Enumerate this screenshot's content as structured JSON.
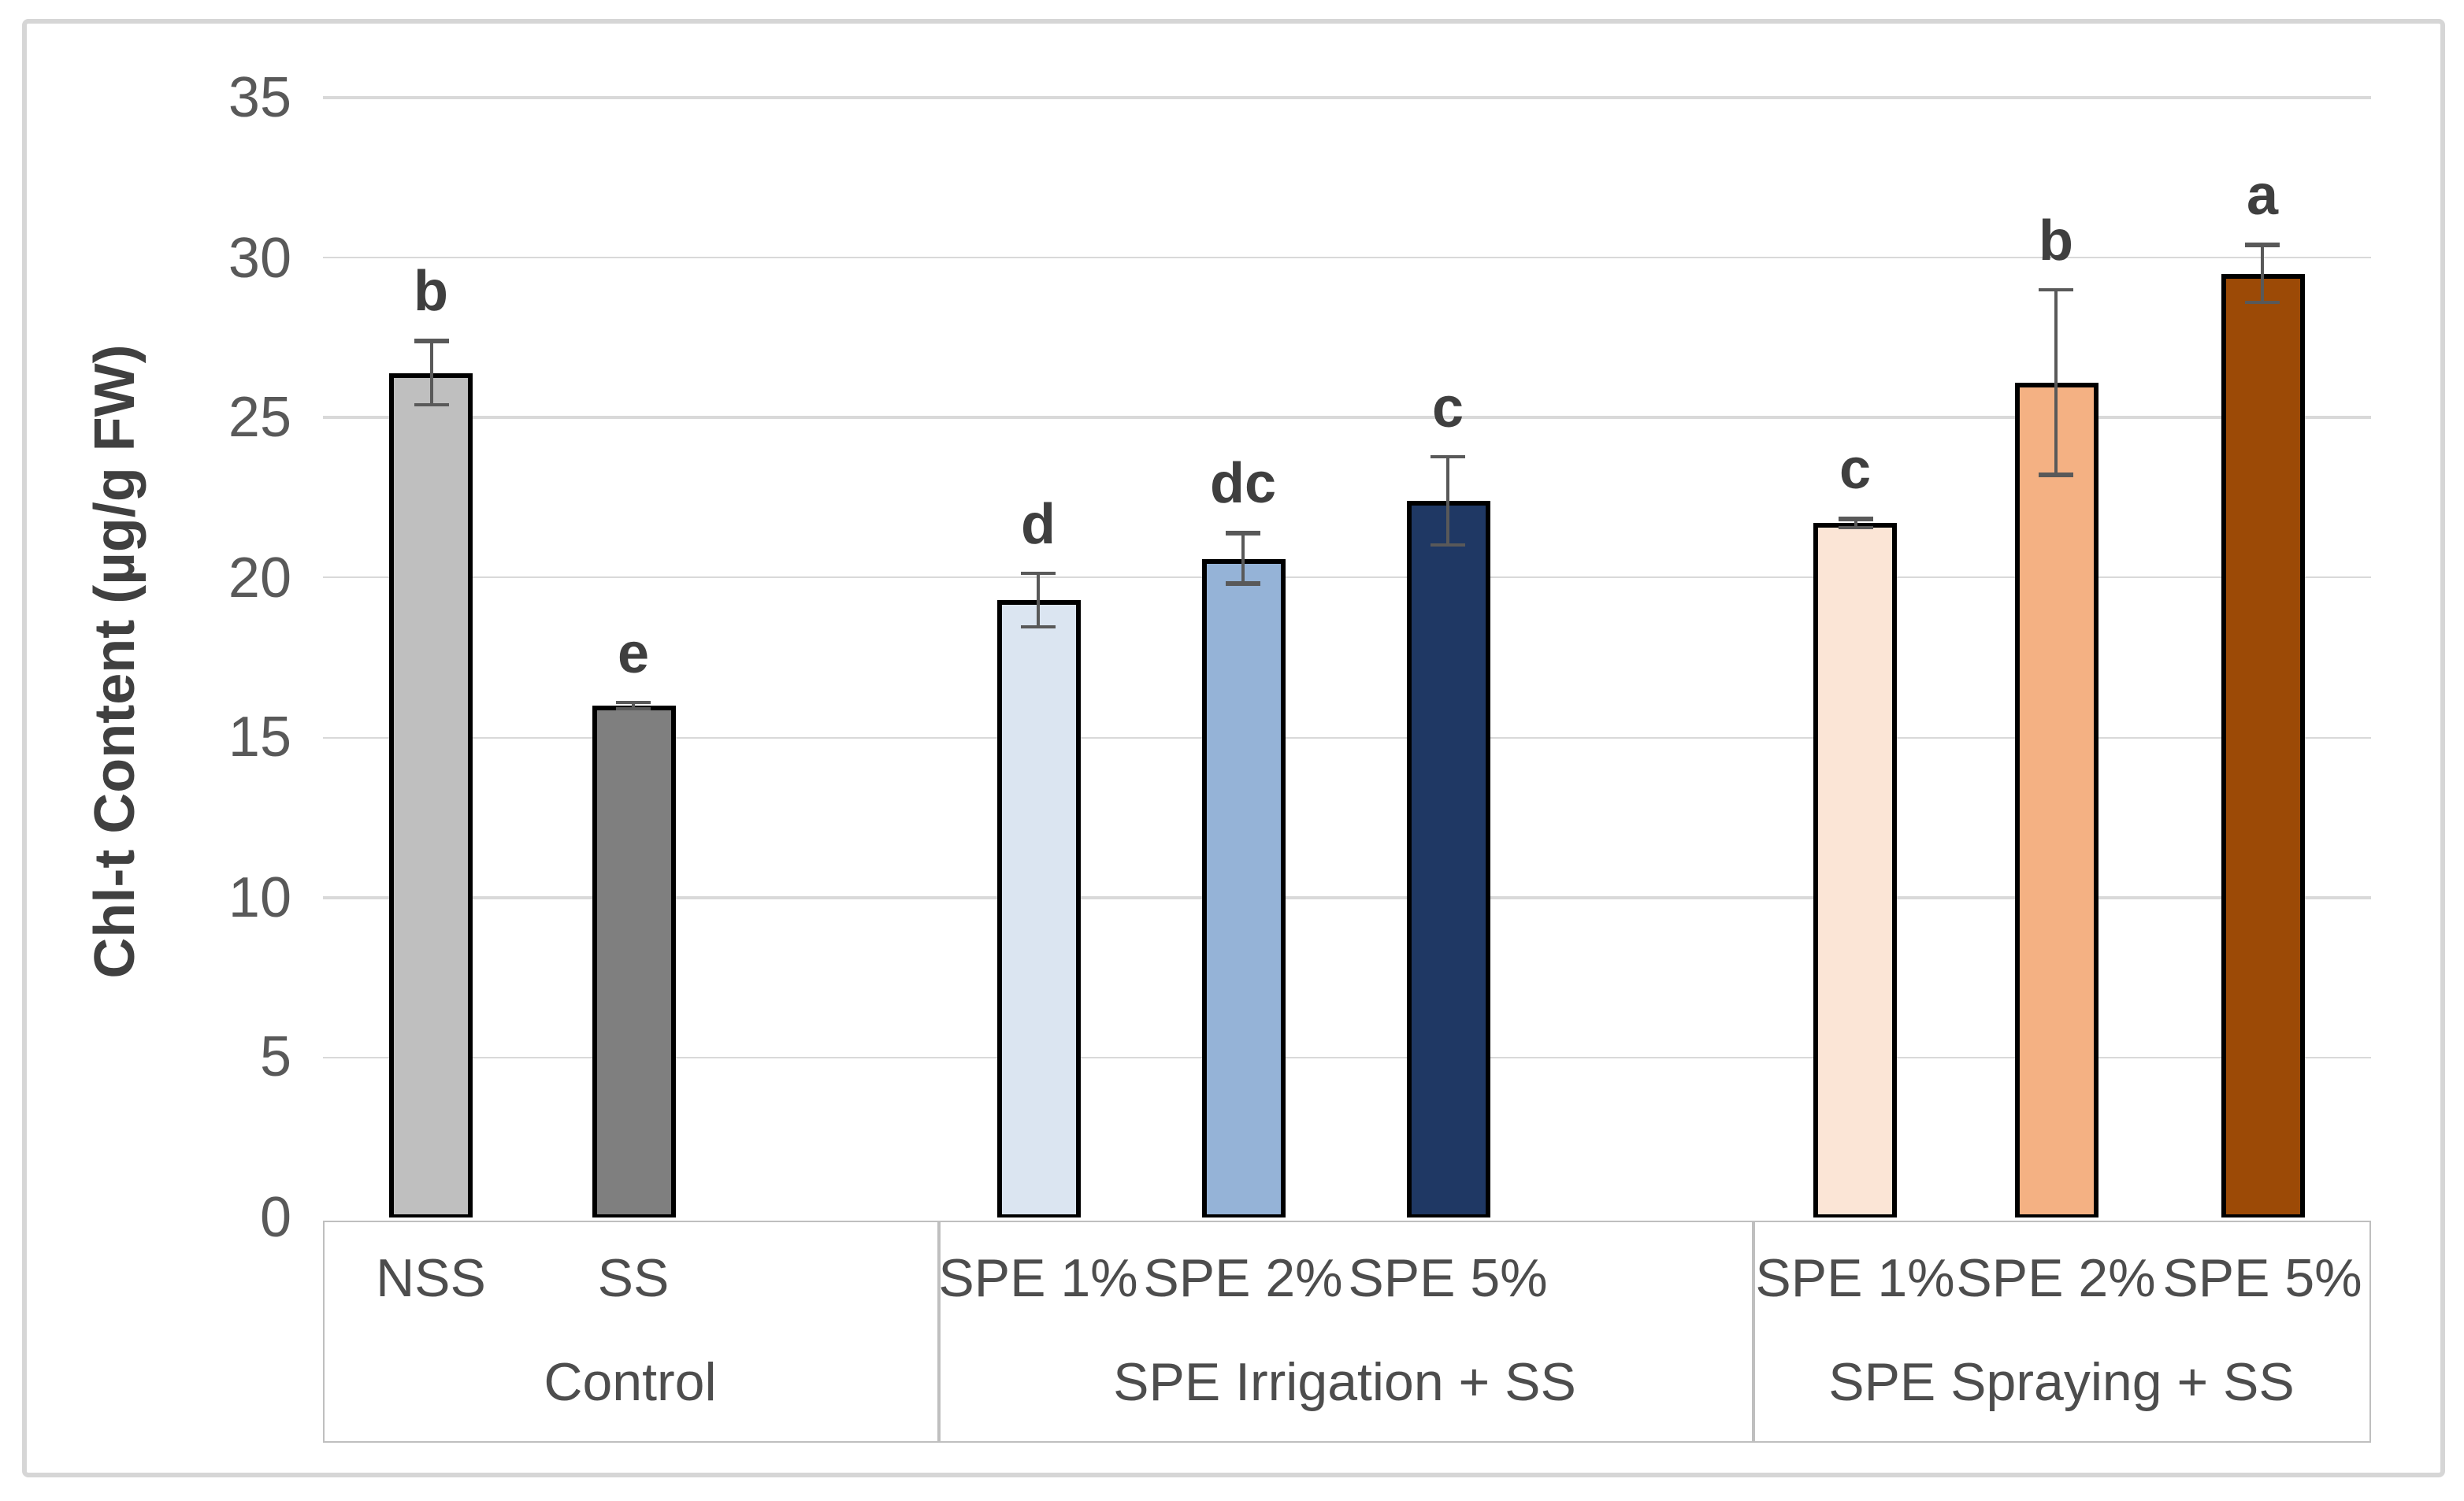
{
  "figure": {
    "background": "#ffffff",
    "frame_color": "#d6d6d6"
  },
  "chart_data": {
    "type": "bar",
    "title": "",
    "xlabel": "",
    "ylabel": "Chl-t Content (µg/g FW)",
    "ylim": [
      0,
      35
    ],
    "yticks": [
      0,
      5,
      10,
      15,
      20,
      25,
      30,
      35
    ],
    "grid": true,
    "legend": false,
    "gridline_color": "#d9d9d9",
    "axis_text_color": "#595959",
    "bar_outline_color": "#000000",
    "error_bar_color": "#595959",
    "letter_color": "#3f3f3f",
    "groups": [
      {
        "label": "Control",
        "bars": [
          {
            "category": "NSS",
            "value": 26.4,
            "error": 1.0,
            "letter": "b",
            "color": "#bfbfbf"
          },
          {
            "category": "SS",
            "value": 16.0,
            "error": 0.12,
            "letter": "e",
            "color": "#7f7f7f"
          }
        ]
      },
      {
        "label": "SPE Irrigation + SS",
        "bars": [
          {
            "category": "SPE 1%",
            "value": 19.3,
            "error": 0.85,
            "letter": "d",
            "color": "#dbe5f1"
          },
          {
            "category": "SPE 2%",
            "value": 20.6,
            "error": 0.8,
            "letter": "dc",
            "color": "#95b3d7"
          },
          {
            "category": "SPE 5%",
            "value": 22.4,
            "error": 1.4,
            "letter": "c",
            "color": "#1f3864"
          }
        ]
      },
      {
        "label": "SPE Spraying + SS",
        "bars": [
          {
            "category": "SPE 1%",
            "value": 21.7,
            "error": 0.15,
            "letter": "c",
            "color": "#fbe5d6"
          },
          {
            "category": "SPE 2%",
            "value": 26.1,
            "error": 2.9,
            "letter": "b",
            "color": "#f4b183"
          },
          {
            "category": "SPE 5%",
            "value": 29.5,
            "error": 0.9,
            "letter": "a",
            "color": "#9c4a06"
          }
        ]
      }
    ]
  }
}
